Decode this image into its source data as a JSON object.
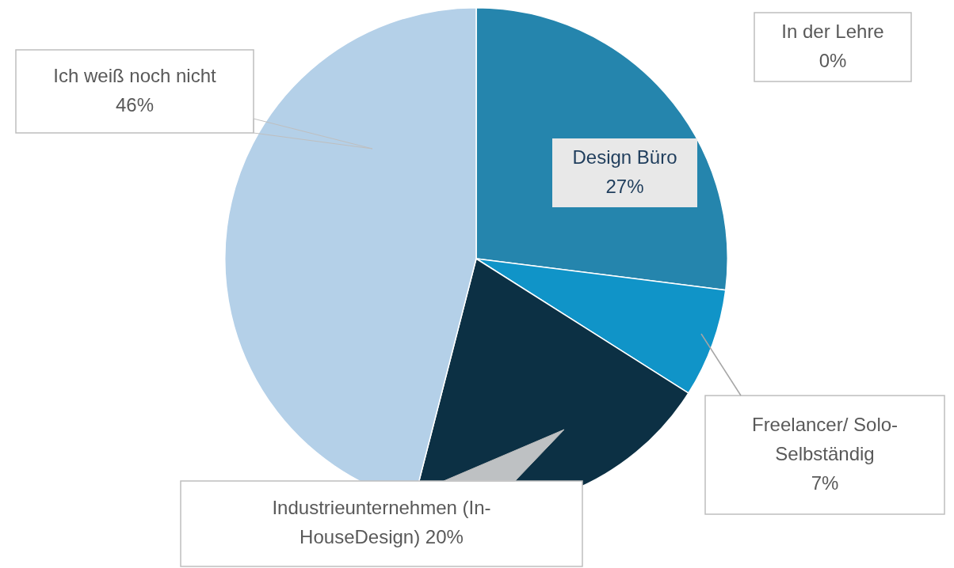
{
  "chart_data": {
    "type": "pie",
    "categories": [
      "Design Büro",
      "Freelancer/ Solo-Selbständig",
      "Industrieunternehmen (In-HouseDesign)",
      "Ich weiß noch nicht",
      "In der Lehre"
    ],
    "values": [
      27,
      7,
      20,
      46,
      0
    ],
    "value_labels": [
      "27%",
      "7%",
      "20%",
      "46%",
      "0%"
    ],
    "colors": [
      "#2585ad",
      "#1094c8",
      "#0c3044",
      "#b4d0e8",
      "#7f7f7f"
    ],
    "legend": false
  }
}
